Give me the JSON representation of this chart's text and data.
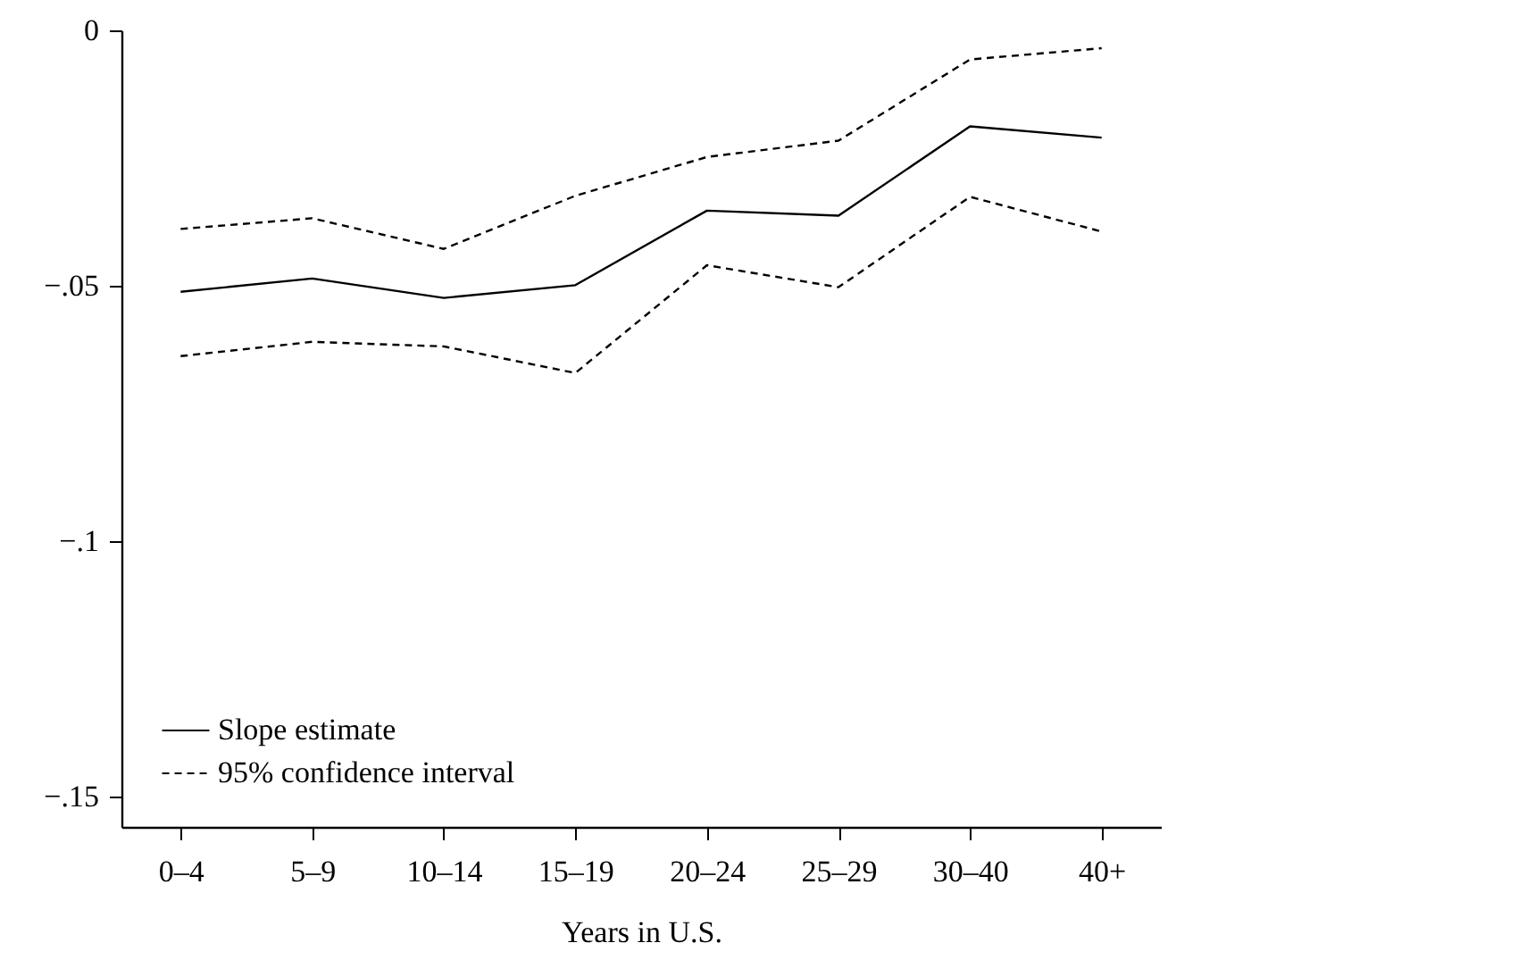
{
  "chart_data": {
    "type": "line",
    "xlabel": "Years in U.S.",
    "categories": [
      "0–4",
      "5–9",
      "10–14",
      "15–19",
      "20–24",
      "25–29",
      "30–40",
      "40+"
    ],
    "ylim": [
      -0.156,
      0
    ],
    "yticks": [
      0,
      {
        "value": -0.05,
        "label": "−.05"
      },
      {
        "value": -0.1,
        "label": "−.1"
      },
      {
        "value": -0.15,
        "label": "−.15"
      }
    ],
    "series": [
      {
        "name": "Slope estimate",
        "color": "#000000",
        "line_style": "solid",
        "values": [
          -0.0512,
          -0.0486,
          -0.0524,
          -0.0499,
          -0.0353,
          -0.0363,
          -0.0188,
          -0.021
        ]
      },
      {
        "name": "95% confidence interval",
        "color": "#000000",
        "line_style": "dashed",
        "values": [
          -0.0389,
          -0.0368,
          -0.0428,
          -0.0324,
          -0.0248,
          -0.0216,
          -0.0057,
          -0.0035
        ]
      },
      {
        "color": "#000000",
        "line_style": "dashed",
        "values": [
          -0.0638,
          -0.061,
          -0.0619,
          -0.0671,
          -0.046,
          -0.0503,
          -0.0326,
          -0.0394
        ]
      }
    ],
    "grid": false,
    "legend": "bottom left",
    "marker": "none"
  }
}
